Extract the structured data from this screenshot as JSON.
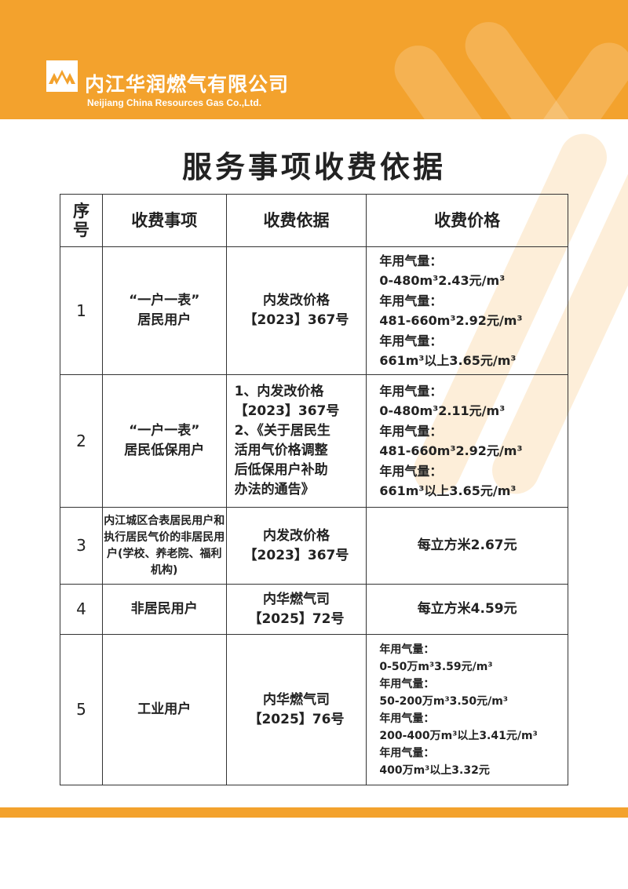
{
  "header": {
    "company_cn": "内江华润燃气有限公司",
    "company_en": "Neijiang China Resources Gas Co.,Ltd.",
    "brand_color": "#f3a22d"
  },
  "title": "服务事项收费依据",
  "table": {
    "headers": [
      "序号",
      "收费事项",
      "收费依据",
      "收费价格"
    ],
    "rows": [
      {
        "no": "1",
        "item": "“一户一表”\n居民用户",
        "basis": "内发改价格\n【2023】367号",
        "price": "年用气量：\n0-480m³2.43元/m³\n年用气量：\n481-660m³2.92元/m³\n年用气量：\n661m³以上3.65元/m³"
      },
      {
        "no": "2",
        "item": "“一户一表”\n居民低保用户",
        "basis": "1、内发改价格\n【2023】367号\n2、《关于居民生\n活用气价格调整\n后低保用户补助\n办法的通告》",
        "price": "年用气量：\n0-480m³2.11元/m³\n年用气量：\n481-660m³2.92元/m³\n年用气量：\n661m³以上3.65元/m³"
      },
      {
        "no": "3",
        "item": "内江城区合表居民用户和执行居民气价的非居民用户(学校、养老院、福利机构)",
        "basis": "内发改价格\n【2023】367号",
        "price": "每立方米2.67元"
      },
      {
        "no": "4",
        "item": "非居民用户",
        "basis": "内华燃气司\n【2025】72号",
        "price": "每立方米4.59元"
      },
      {
        "no": "5",
        "item": "工业用户",
        "basis": "内华燃气司\n【2025】76号",
        "price": "年用气量：\n0-50万m³3.59元/m³\n年用气量：\n50-200万m³3.50元/m³\n年用气量：\n200-400万m³以上3.41元/m³\n年用气量：\n400万m³以上3.32元"
      }
    ]
  }
}
